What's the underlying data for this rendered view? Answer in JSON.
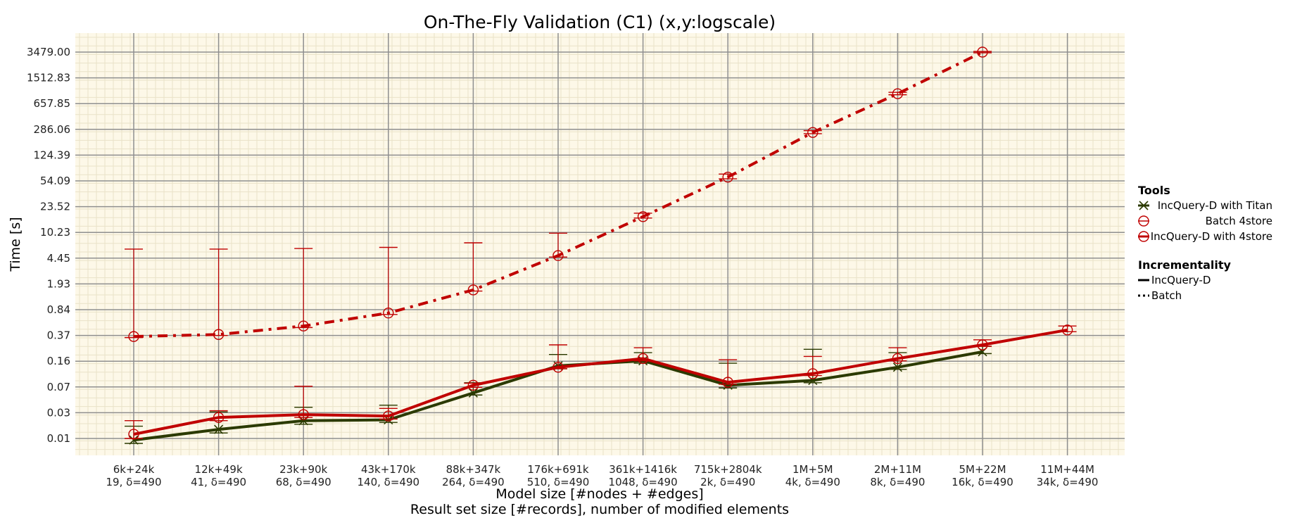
{
  "chart_data": {
    "type": "line",
    "title": "On-The-Fly Validation (C1) (x,y:logscale)",
    "xlabel_line1": "Model size [#nodes + #edges]",
    "xlabel_line2": "Result set size [#records], number of modified elements",
    "ylabel": "Time [s]",
    "y_scale": "log",
    "y_ticks": [
      "0.01",
      "0.03",
      "0.07",
      "0.16",
      "0.37",
      "0.84",
      "1.93",
      "4.45",
      "10.23",
      "23.52",
      "54.09",
      "124.39",
      "286.06",
      "657.85",
      "1512.83",
      "3479.00"
    ],
    "ylim": [
      0.0077,
      4600
    ],
    "grid": true,
    "legend_position": "right",
    "categories": [
      {
        "size": "6k+24k",
        "detail": "19, δ=490"
      },
      {
        "size": "12k+49k",
        "detail": "41, δ=490"
      },
      {
        "size": "23k+90k",
        "detail": "68, δ=490"
      },
      {
        "size": "43k+170k",
        "detail": "140, δ=490"
      },
      {
        "size": "88k+347k",
        "detail": "264, δ=490"
      },
      {
        "size": "176k+691k",
        "detail": "510, δ=490"
      },
      {
        "size": "361k+1416k",
        "detail": "1048, δ=490"
      },
      {
        "size": "715k+2804k",
        "detail": "2k, δ=490"
      },
      {
        "size": "1M+5M",
        "detail": "4k, δ=490"
      },
      {
        "size": "2M+11M",
        "detail": "8k, δ=490"
      },
      {
        "size": "5M+22M",
        "detail": "16k, δ=490"
      },
      {
        "size": "11M+44M",
        "detail": "34k, δ=490"
      }
    ],
    "series": [
      {
        "name": "IncQuery-D with Titan",
        "incrementality": "IncQuery-D",
        "color": "#2b3a00",
        "marker": "x",
        "dash": "solid",
        "values": [
          0.0095,
          0.0135,
          0.018,
          0.0185,
          0.045,
          0.11,
          0.13,
          0.058,
          0.068,
          0.105,
          0.175,
          null
        ],
        "err_low": [
          0.0085,
          0.012,
          0.016,
          0.017,
          0.042,
          0.1,
          0.12,
          0.053,
          0.063,
          0.098,
          0.165,
          null
        ],
        "err_high": [
          0.015,
          0.024,
          0.028,
          0.03,
          0.063,
          0.16,
          0.17,
          0.12,
          0.19,
          0.17,
          0.21,
          null
        ]
      },
      {
        "name": "Batch 4store",
        "incrementality": "Batch",
        "color": "#c00000",
        "marker": "o",
        "dash": "dashdot",
        "values": [
          0.29,
          0.31,
          0.41,
          0.63,
          1.35,
          4.2,
          15.2,
          56,
          245,
          880,
          3479,
          null
        ],
        "err_low": [
          0.28,
          0.3,
          0.39,
          0.6,
          1.3,
          4.0,
          14.5,
          53,
          235,
          850,
          3400,
          null
        ],
        "err_high": [
          5.2,
          5.2,
          5.3,
          5.5,
          6.4,
          8.8,
          17.0,
          62,
          260,
          920,
          3550,
          null
        ]
      },
      {
        "name": "IncQuery-D with 4store",
        "incrementality": "IncQuery-D",
        "color": "#c00000",
        "marker": "o",
        "dash": "solid",
        "values": [
          0.0115,
          0.02,
          0.022,
          0.021,
          0.058,
          0.105,
          0.14,
          0.064,
          0.085,
          0.14,
          0.22,
          0.36
        ],
        "err_low": [
          0.01,
          0.018,
          0.02,
          0.019,
          0.054,
          0.1,
          0.13,
          0.06,
          0.08,
          0.13,
          0.21,
          0.34
        ],
        "err_high": [
          0.018,
          0.025,
          0.056,
          0.027,
          0.062,
          0.22,
          0.2,
          0.135,
          0.15,
          0.2,
          0.26,
          0.41
        ]
      }
    ],
    "legend": {
      "tools_title": "Tools",
      "tools": [
        "IncQuery-D with Titan",
        "Batch 4store",
        "IncQuery-D with 4store"
      ],
      "incrementality_title": "Incrementality",
      "incrementality": [
        "IncQuery-D",
        "Batch"
      ]
    }
  }
}
